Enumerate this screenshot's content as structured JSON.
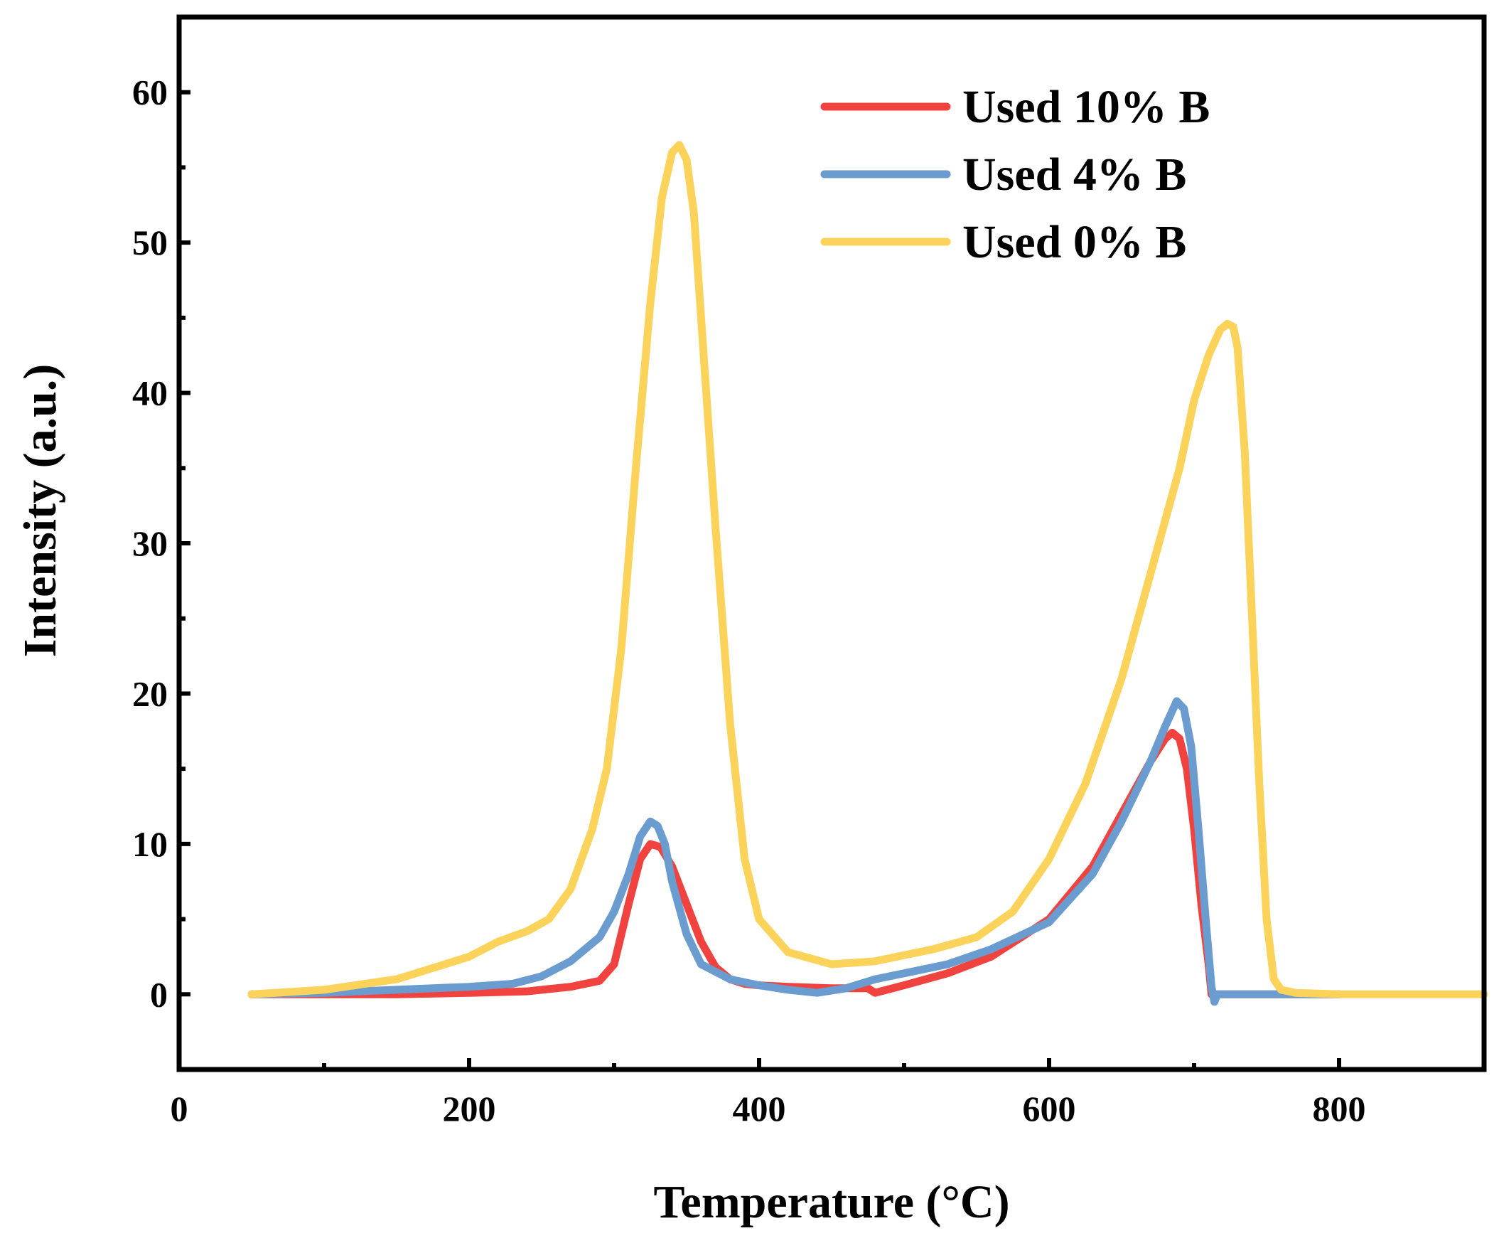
{
  "chart_data": {
    "type": "line",
    "title": "",
    "xlabel": "Temperature (°C)",
    "ylabel": "Intensity (a.u.)",
    "xlim": [
      0,
      900
    ],
    "ylim": [
      -5,
      65
    ],
    "xticks": [
      0,
      200,
      400,
      600,
      800
    ],
    "xticks_minor": [
      100,
      300,
      500,
      700
    ],
    "yticks": [
      0,
      10,
      20,
      30,
      40,
      50,
      60
    ],
    "yticks_minor": [
      5,
      15,
      25,
      35,
      45,
      55
    ],
    "legend_position": "top-right",
    "series": [
      {
        "name": "Used 10% B",
        "color": "#f0433f",
        "x": [
          50,
          100,
          150,
          200,
          240,
          270,
          290,
          300,
          310,
          318,
          325,
          332,
          340,
          350,
          360,
          370,
          380,
          390,
          400,
          420,
          450,
          475,
          480,
          500,
          530,
          560,
          600,
          630,
          650,
          670,
          680,
          685,
          690,
          695,
          700,
          705,
          710,
          712,
          730,
          800
        ],
        "y": [
          0.0,
          0.0,
          0.0,
          0.1,
          0.2,
          0.5,
          0.9,
          2.0,
          6.0,
          9.0,
          10.0,
          9.8,
          8.5,
          6.0,
          3.5,
          1.8,
          1.0,
          0.7,
          0.6,
          0.5,
          0.4,
          0.4,
          0.1,
          0.6,
          1.4,
          2.5,
          5.0,
          8.5,
          12.0,
          15.5,
          17.0,
          17.4,
          17.0,
          15.0,
          11.0,
          6.0,
          2.0,
          0.0,
          0.0,
          0.0
        ]
      },
      {
        "name": "Used 4% B",
        "color": "#6a9ccf",
        "x": [
          50,
          100,
          150,
          200,
          230,
          250,
          270,
          290,
          300,
          310,
          318,
          325,
          330,
          335,
          340,
          350,
          360,
          380,
          400,
          420,
          440,
          460,
          480,
          500,
          530,
          560,
          600,
          630,
          650,
          670,
          680,
          688,
          693,
          698,
          703,
          708,
          712,
          714,
          716,
          730,
          770,
          800
        ],
        "y": [
          0.0,
          0.1,
          0.3,
          0.5,
          0.7,
          1.2,
          2.2,
          3.8,
          5.5,
          8.0,
          10.5,
          11.5,
          11.2,
          10.0,
          7.5,
          4.0,
          2.0,
          1.0,
          0.6,
          0.3,
          0.1,
          0.4,
          1.0,
          1.4,
          2.0,
          3.0,
          4.8,
          8.0,
          11.5,
          15.5,
          17.8,
          19.5,
          19.0,
          16.5,
          11.0,
          5.0,
          0.5,
          -0.5,
          0.0,
          0.0,
          0.0,
          0.0
        ]
      },
      {
        "name": "Used 0% B",
        "color": "#fbd35a",
        "x": [
          50,
          100,
          150,
          200,
          220,
          240,
          255,
          270,
          285,
          295,
          305,
          315,
          325,
          333,
          340,
          345,
          350,
          355,
          360,
          370,
          380,
          390,
          400,
          420,
          450,
          480,
          500,
          520,
          550,
          575,
          600,
          625,
          650,
          670,
          690,
          700,
          710,
          718,
          723,
          727,
          730,
          735,
          740,
          745,
          750,
          755,
          760,
          770,
          800,
          850,
          900
        ],
        "y": [
          0.0,
          0.3,
          1.0,
          2.5,
          3.5,
          4.2,
          5.0,
          7.0,
          11.0,
          15.0,
          23.0,
          35.0,
          46.0,
          53.0,
          56.0,
          56.5,
          55.5,
          52.0,
          45.0,
          31.0,
          18.0,
          9.0,
          5.0,
          2.8,
          2.0,
          2.2,
          2.6,
          3.0,
          3.8,
          5.5,
          9.0,
          14.0,
          21.0,
          28.0,
          35.0,
          39.5,
          42.5,
          44.2,
          44.6,
          44.4,
          43.0,
          36.0,
          25.0,
          14.0,
          5.0,
          1.0,
          0.3,
          0.1,
          0.0,
          0.0,
          0.0
        ]
      }
    ]
  }
}
